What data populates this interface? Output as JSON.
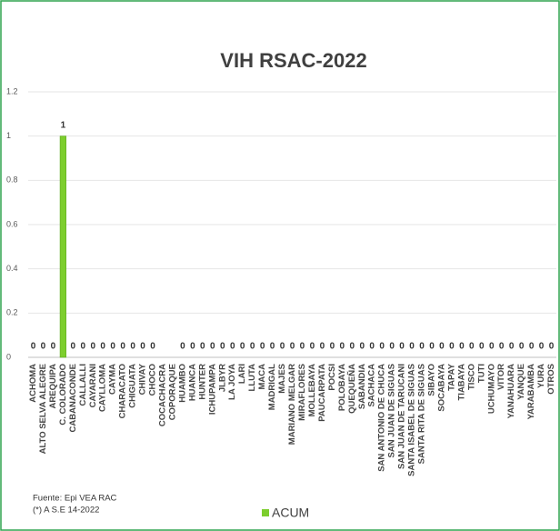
{
  "chart_data": {
    "type": "bar",
    "title": "VIH RSAC-2022",
    "categories": [
      "ACHOMA",
      "ALTO SELVA ALEGRE",
      "AREQUIPA",
      "C. COLORADO",
      "CABANACONDE",
      "CALLALLI",
      "CAYARANI",
      "CAYLLOMA",
      "CAYMA",
      "CHARACATO",
      "CHIGUATA",
      "CHIVAY",
      "CHOCO",
      "COCACHACRA",
      "COPORAQUE",
      "HUAMBO",
      "HUANCA",
      "HUNTER",
      "ICHUPAMPA",
      "JLBYR",
      "LA JOYA",
      "LARI",
      "LLUTA",
      "MACA",
      "MADRIGAL",
      "MAJES",
      "MARIANO MELGAR",
      "MIRAFLORES",
      "MOLLEBAYA",
      "PAUCARPATA",
      "POCSI",
      "POLOBAYA",
      "QUEQUEÑA",
      "SABANDIA",
      "SACHACA",
      "SAN ANTONIO DE CHUCA",
      "SAN JUAN DE SIGUAS",
      "SAN JUAN DE TARUCANI",
      "SANTA ISABEL DE SIGUAS",
      "SANTA RITA DE SIGUAS",
      "SIBAYO",
      "SOCABAYA",
      "TAPAY",
      "TIABAYA",
      "TISCO",
      "TUTI",
      "UCHUMAYO",
      "VITOR",
      "YANAHUARA",
      "YANQUE",
      "YARABAMBA",
      "YURA",
      "OTROS"
    ],
    "series": [
      {
        "name": "ACUM",
        "color": "#7dce2e",
        "values": [
          0,
          0,
          0,
          1,
          0,
          0,
          0,
          0,
          0,
          0,
          0,
          0,
          0,
          null,
          null,
          0,
          0,
          0,
          0,
          0,
          0,
          0,
          0,
          0,
          0,
          0,
          0,
          0,
          0,
          0,
          0,
          0,
          0,
          0,
          0,
          0,
          0,
          0,
          0,
          0,
          0,
          0,
          0,
          0,
          0,
          0,
          0,
          0,
          0,
          0,
          0,
          0,
          0
        ]
      }
    ],
    "ylim": [
      0,
      1.2
    ],
    "yticks": [
      0,
      0.2,
      0.4,
      0.6,
      0.8,
      1,
      1.2
    ],
    "grid": true,
    "source": "Fuente:  Epi VEA RAC",
    "note": "(*) A S.E 14-2022"
  }
}
